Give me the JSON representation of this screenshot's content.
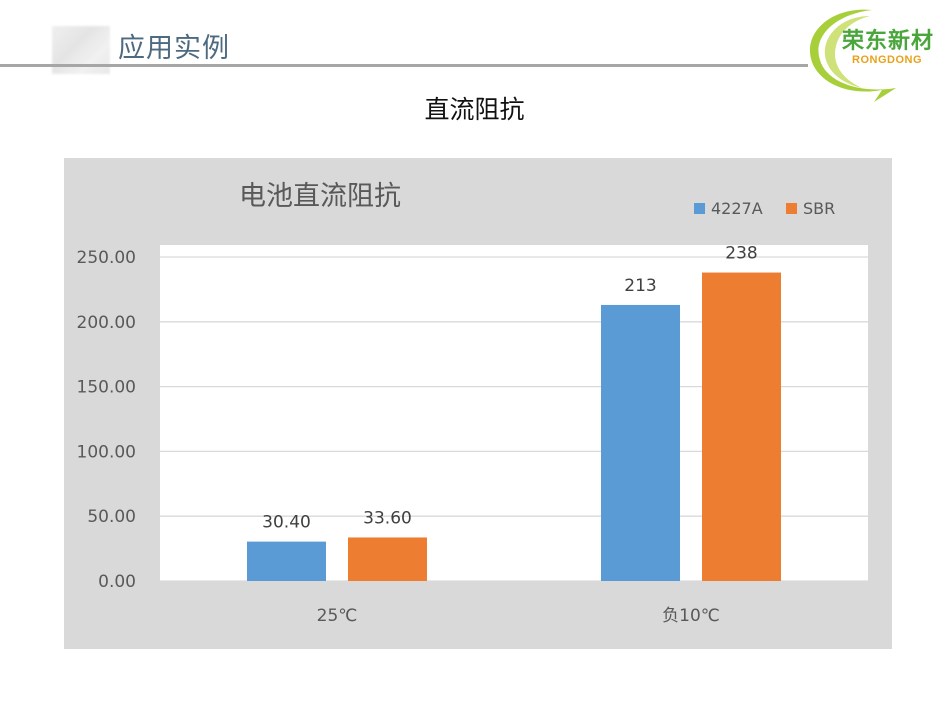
{
  "header": {
    "title": "应用实例"
  },
  "logo": {
    "name": "荣东新材",
    "sub": "RONGDONG"
  },
  "slide": {
    "title": "直流阻抗"
  },
  "colors": {
    "series1": "#5b9bd5",
    "series2": "#ed7d31",
    "panel": "#d9d9d9",
    "plot": "#ffffff",
    "grid": "#d9d9d9"
  },
  "chart_data": {
    "type": "bar",
    "title": "电池直流阻抗",
    "categories": [
      "25℃",
      "负10℃"
    ],
    "series": [
      {
        "name": "4227A",
        "values": [
          30.4,
          213
        ],
        "labels": [
          "30.40",
          "213"
        ]
      },
      {
        "name": "SBR",
        "values": [
          33.6,
          238
        ],
        "labels": [
          "33.60",
          "238"
        ]
      }
    ],
    "yticks": [
      "0.00",
      "50.00",
      "100.00",
      "150.00",
      "200.00",
      "250.00"
    ],
    "ylim": [
      0,
      250
    ],
    "grid": true,
    "legend": "top-right"
  }
}
